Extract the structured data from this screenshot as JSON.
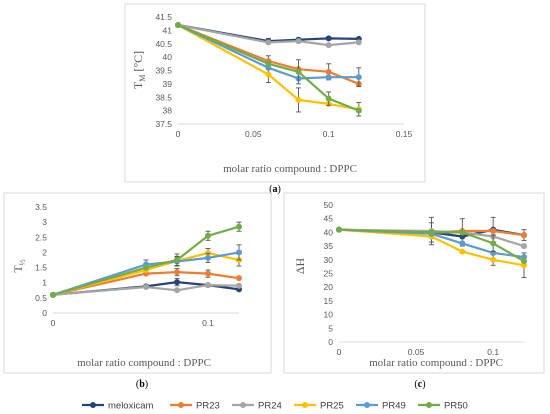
{
  "legend": {
    "items": [
      {
        "name": "meloxicam",
        "color": "#264478"
      },
      {
        "name": "PR23",
        "color": "#ED7D31"
      },
      {
        "name": "PR24",
        "color": "#A5A5A5"
      },
      {
        "name": "PR25",
        "color": "#FFC000"
      },
      {
        "name": "PR49",
        "color": "#5B9BD5"
      },
      {
        "name": "PR50",
        "color": "#70AD47"
      }
    ]
  },
  "chart_data": [
    {
      "id": "a",
      "type": "line",
      "panel_label": "(a)",
      "xlabel": "molar ratio compound : DPPC",
      "ylabel": "TM [°C]",
      "xlim": [
        0,
        0.15
      ],
      "ylim": [
        37.5,
        41.5
      ],
      "xticks": [
        0,
        0.05,
        0.1,
        0.15
      ],
      "xtick_labels": [
        "0",
        "0.05",
        "0.1",
        "0.15"
      ],
      "yticks": [
        37.5,
        38,
        38.5,
        39,
        39.5,
        40,
        40.5,
        41,
        41.5
      ],
      "ytick_labels": [
        "37.5",
        "38",
        "38.5",
        "39",
        "39.5",
        "40",
        "40.5",
        "41",
        "41.5"
      ],
      "x": [
        0,
        0.06,
        0.08,
        0.1,
        0.12
      ],
      "series": [
        {
          "name": "meloxicam",
          "color": "#264478",
          "values": [
            41.2,
            40.6,
            40.65,
            40.7,
            40.68
          ],
          "errors": [
            0,
            0.1,
            0,
            0,
            0
          ]
        },
        {
          "name": "PR23",
          "color": "#ED7D31",
          "values": [
            41.2,
            39.85,
            39.55,
            39.45,
            39.0
          ],
          "errors": [
            0,
            0.2,
            0,
            0.3,
            0
          ]
        },
        {
          "name": "PR24",
          "color": "#A5A5A5",
          "values": [
            41.2,
            40.55,
            40.6,
            40.45,
            40.55
          ],
          "errors": [
            0,
            0,
            0,
            0,
            0
          ]
        },
        {
          "name": "PR25",
          "color": "#FFC000",
          "values": [
            41.2,
            39.35,
            38.4,
            38.25,
            38.05
          ],
          "errors": [
            0,
            0.3,
            0.45,
            0,
            0.25
          ]
        },
        {
          "name": "PR49",
          "color": "#5B9BD5",
          "values": [
            41.2,
            39.6,
            39.2,
            39.25,
            39.25
          ],
          "errors": [
            0,
            0,
            0,
            0,
            0.35
          ]
        },
        {
          "name": "PR50",
          "color": "#70AD47",
          "values": [
            41.2,
            39.75,
            39.45,
            38.45,
            38.0
          ],
          "errors": [
            0,
            0,
            0.45,
            0.25,
            0
          ]
        }
      ]
    },
    {
      "id": "b",
      "type": "line",
      "panel_label": "(b)",
      "xlabel": "molar ratio compound : DPPC",
      "ylabel": "T½",
      "xlim": [
        0,
        0.12
      ],
      "ylim": [
        0,
        3.5
      ],
      "xticks": [
        0,
        0.1
      ],
      "xtick_labels": [
        "0",
        "0.1"
      ],
      "yticks": [
        0,
        0.5,
        1,
        1.5,
        2,
        2.5,
        3,
        3.5
      ],
      "ytick_labels": [
        "0",
        "0.5",
        "1",
        "1.5",
        "2",
        "2.5",
        "3",
        "3.5"
      ],
      "x": [
        0,
        0.06,
        0.08,
        0.1,
        0.12
      ],
      "series": [
        {
          "name": "meloxicam",
          "color": "#264478",
          "values": [
            0.6,
            0.88,
            1.02,
            0.92,
            0.78
          ],
          "errors": [
            0,
            0,
            0.12,
            0,
            0
          ]
        },
        {
          "name": "PR23",
          "color": "#ED7D31",
          "values": [
            0.6,
            1.3,
            1.35,
            1.3,
            1.15
          ],
          "errors": [
            0,
            0,
            0.12,
            0.12,
            0
          ]
        },
        {
          "name": "PR24",
          "color": "#A5A5A5",
          "values": [
            0.6,
            0.86,
            0.75,
            0.92,
            0.9
          ],
          "errors": [
            0,
            0,
            0,
            0,
            0
          ]
        },
        {
          "name": "PR25",
          "color": "#FFC000",
          "values": [
            0.6,
            1.42,
            1.72,
            1.98,
            1.75
          ],
          "errors": [
            0,
            0,
            0.15,
            0.15,
            0.2
          ]
        },
        {
          "name": "PR49",
          "color": "#5B9BD5",
          "values": [
            0.6,
            1.6,
            1.7,
            1.82,
            2.0
          ],
          "errors": [
            0,
            0.15,
            0.15,
            0.15,
            0.25
          ]
        },
        {
          "name": "PR50",
          "color": "#70AD47",
          "values": [
            0.6,
            1.5,
            1.75,
            2.55,
            2.85
          ],
          "errors": [
            0,
            0,
            0.2,
            0.15,
            0.15
          ]
        }
      ]
    },
    {
      "id": "c",
      "type": "line",
      "panel_label": "(c)",
      "xlabel": "molar ratio compound : DPPC",
      "ylabel": "ΔH",
      "xlim": [
        0,
        0.12
      ],
      "ylim": [
        0,
        50
      ],
      "xticks": [
        0,
        0.05,
        0.1
      ],
      "xtick_labels": [
        "0",
        "0.05",
        "0.1"
      ],
      "yticks": [
        0,
        5,
        10,
        15,
        20,
        25,
        30,
        35,
        40,
        45,
        50
      ],
      "ytick_labels": [
        "0",
        "5",
        "10",
        "15",
        "20",
        "25",
        "30",
        "35",
        "40",
        "45",
        "50"
      ],
      "x": [
        0,
        0.06,
        0.08,
        0.1,
        0.12
      ],
      "series": [
        {
          "name": "meloxicam",
          "color": "#264478",
          "values": [
            41.0,
            40.0,
            38.5,
            41.0,
            39.0
          ],
          "errors": [
            0,
            3.5,
            0,
            4.5,
            0
          ]
        },
        {
          "name": "PR23",
          "color": "#ED7D31",
          "values": [
            41.0,
            40.0,
            40.5,
            40.5,
            39.0
          ],
          "errors": [
            0,
            0,
            0,
            0,
            2.0
          ]
        },
        {
          "name": "PR24",
          "color": "#A5A5A5",
          "values": [
            41.0,
            40.5,
            40.0,
            38.5,
            35.0
          ],
          "errors": [
            0,
            5.0,
            5.0,
            0,
            0
          ]
        },
        {
          "name": "PR25",
          "color": "#FFC000",
          "values": [
            41.0,
            38.5,
            33.0,
            30.0,
            28.0
          ],
          "errors": [
            0,
            0,
            0,
            2.0,
            4.5
          ]
        },
        {
          "name": "PR49",
          "color": "#5B9BD5",
          "values": [
            41.0,
            39.5,
            36.0,
            32.5,
            31.0
          ],
          "errors": [
            0,
            0,
            0,
            0,
            0
          ]
        },
        {
          "name": "PR50",
          "color": "#70AD47",
          "values": [
            41.0,
            40.0,
            40.0,
            36.0,
            29.5
          ],
          "errors": [
            0,
            0,
            0,
            3.0,
            0
          ]
        }
      ]
    }
  ]
}
